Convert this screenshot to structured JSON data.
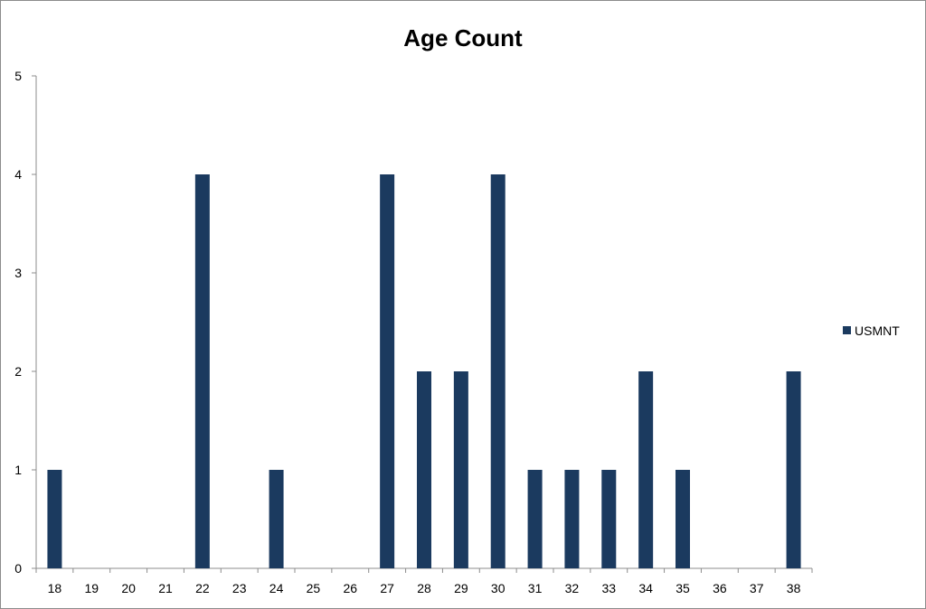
{
  "chart_data": {
    "type": "bar",
    "title": "Age Count",
    "xlabel": "",
    "ylabel": "",
    "categories": [
      "18",
      "19",
      "20",
      "21",
      "22",
      "23",
      "24",
      "25",
      "26",
      "27",
      "28",
      "29",
      "30",
      "31",
      "32",
      "33",
      "34",
      "35",
      "36",
      "37",
      "38"
    ],
    "series": [
      {
        "name": "USMNT",
        "color": "#1b3a5f",
        "values": [
          1,
          0,
          0,
          0,
          4,
          0,
          1,
          0,
          0,
          4,
          2,
          2,
          4,
          1,
          1,
          1,
          2,
          1,
          0,
          0,
          2
        ]
      }
    ],
    "ylim": [
      0,
      5
    ],
    "yticks": [
      "0",
      "1",
      "2",
      "3",
      "4",
      "5"
    ],
    "grid": false,
    "legend_position": "right"
  }
}
